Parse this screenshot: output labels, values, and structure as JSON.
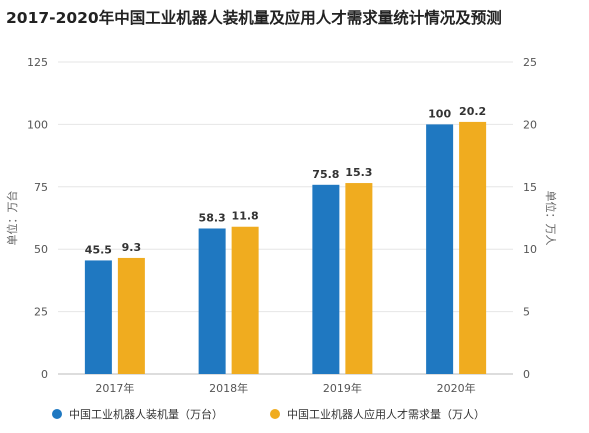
{
  "title": "2017-2020年中国工业机器人装机量及应用人才需求量统计情况及预测",
  "chart_data": {
    "type": "bar",
    "categories": [
      "2017年",
      "2018年",
      "2019年",
      "2020年"
    ],
    "series": [
      {
        "name": "中国工业机器人装机量（万台）",
        "values": [
          45.5,
          58.3,
          75.8,
          100
        ],
        "color": "#1f78c1",
        "axis": "left"
      },
      {
        "name": "中国工业机器人应用人才需求量（万人）",
        "values": [
          9.3,
          11.8,
          15.3,
          20.2
        ],
        "color": "#f0ac1f",
        "axis": "right"
      }
    ],
    "data_labels": [
      [
        "45.5",
        "58.3",
        "75.8",
        "100"
      ],
      [
        "9.3",
        "11.8",
        "15.3",
        "20.2"
      ]
    ],
    "y_left": {
      "label": "单位：万台",
      "ylim": [
        0,
        125
      ],
      "ticks": [
        0,
        25,
        50,
        75,
        100,
        125
      ]
    },
    "y_right": {
      "label": "单位：万人",
      "ylim": [
        0,
        25
      ],
      "ticks": [
        0,
        5,
        10,
        15,
        20,
        25
      ]
    },
    "grid": true,
    "legend": "bottom"
  }
}
